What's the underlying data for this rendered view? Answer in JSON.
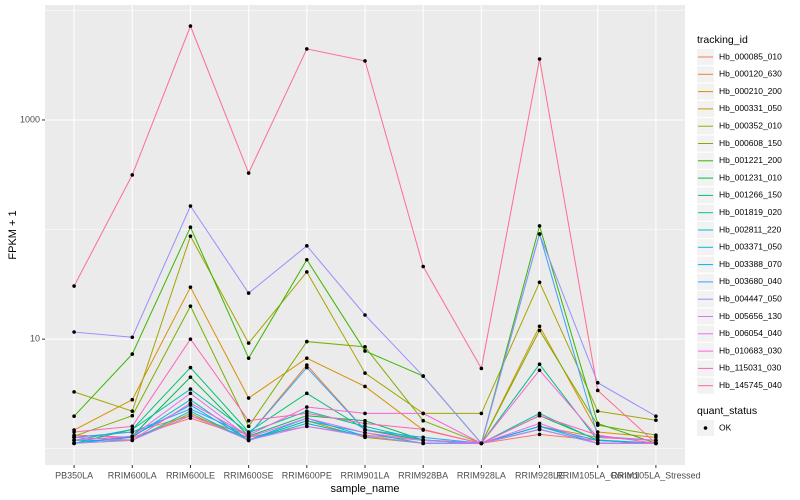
{
  "chart_data": {
    "type": "line",
    "x_label": "sample_name",
    "y_label": "FPKM + 1",
    "categories": [
      "PB350LA",
      "RRIM600LA",
      "RRIM600LE",
      "RRIM600SE",
      "RRIM600PE",
      "RRIM901LA",
      "RRIM928BA",
      "RRIM928LA",
      "RRIM928LE",
      "RRIM105LA_Control",
      "RRIM105LA_Stressed"
    ],
    "log_scale": true,
    "grid": true,
    "ylim": [
      0.71,
      11200
    ],
    "yticks": [
      10,
      1000
    ],
    "legend_position": "right",
    "legend_title": "tracking_id",
    "point_legend": {
      "title": "quant_status",
      "labels": [
        "OK"
      ],
      "color": "#000000"
    },
    "series": [
      {
        "name": "Hb_000085_010",
        "color": "#F8766D",
        "values": [
          1.33,
          1.27,
          1.9,
          1.27,
          1.6,
          1.33,
          1.19,
          1.12,
          1.35,
          1.19,
          1.12
        ]
      },
      {
        "name": "Hb_000120_630",
        "color": "#EA8331",
        "values": [
          1.27,
          1.42,
          2.0,
          1.33,
          5.8,
          1.48,
          1.19,
          1.12,
          1.6,
          1.27,
          1.19
        ]
      },
      {
        "name": "Hb_000210_200",
        "color": "#D89000",
        "values": [
          1.48,
          2.8,
          29.8,
          2.9,
          6.7,
          3.7,
          1.48,
          1.12,
          13.1,
          1.42,
          1.27
        ]
      },
      {
        "name": "Hb_000331_050",
        "color": "#C09B00",
        "values": [
          1.12,
          1.19,
          2.1,
          1.19,
          1.8,
          1.27,
          1.12,
          1.12,
          1.5,
          1.12,
          1.12
        ]
      },
      {
        "name": "Hb_000352_010",
        "color": "#A3A500",
        "values": [
          3.3,
          2.2,
          87,
          9.2,
          41,
          4.9,
          2.1,
          2.1,
          33,
          2.2,
          1.82
        ]
      },
      {
        "name": "Hb_000608_150",
        "color": "#7CAE00",
        "values": [
          1.3,
          2.0,
          20,
          1.6,
          9.5,
          8.5,
          1.8,
          1.12,
          12,
          1.64,
          1.33
        ]
      },
      {
        "name": "Hb_001221_200",
        "color": "#39B600",
        "values": [
          1.98,
          7.3,
          105,
          6.7,
          53,
          7.8,
          4.6,
          1.12,
          108,
          1.7,
          1.12
        ]
      },
      {
        "name": "Hb_001231_010",
        "color": "#00BB4E",
        "values": [
          1.12,
          1.3,
          4.5,
          1.3,
          2.0,
          1.8,
          1.2,
          1.12,
          2.0,
          1.2,
          1.12
        ]
      },
      {
        "name": "Hb_001266_150",
        "color": "#00BF7D",
        "values": [
          1.12,
          1.5,
          5.5,
          1.42,
          3.2,
          1.5,
          1.19,
          1.12,
          5.9,
          1.19,
          1.12
        ]
      },
      {
        "name": "Hb_001819_020",
        "color": "#00C1A3",
        "values": [
          1.19,
          1.5,
          3.5,
          1.4,
          2.2,
          1.6,
          1.2,
          1.12,
          2.1,
          1.19,
          1.12
        ]
      },
      {
        "name": "Hb_002811_220",
        "color": "#00BFC4",
        "values": [
          1.12,
          1.27,
          2.8,
          1.2,
          1.8,
          1.4,
          1.12,
          1.12,
          1.6,
          1.12,
          1.12
        ]
      },
      {
        "name": "Hb_003371_050",
        "color": "#00BAE0",
        "values": [
          1.19,
          1.2,
          2.2,
          1.19,
          1.7,
          1.3,
          1.12,
          1.12,
          1.5,
          1.12,
          1.12
        ]
      },
      {
        "name": "Hb_003388_070",
        "color": "#00B0F6",
        "values": [
          1.12,
          1.3,
          2.5,
          1.2,
          1.9,
          1.3,
          1.12,
          1.12,
          1.6,
          1.19,
          1.12
        ]
      },
      {
        "name": "Hb_003680_040",
        "color": "#35A2FF",
        "values": [
          1.27,
          1.42,
          2.3,
          1.33,
          5.5,
          1.48,
          1.27,
          1.12,
          91,
          1.3,
          1.19
        ]
      },
      {
        "name": "Hb_004447_050",
        "color": "#9590FF",
        "values": [
          11.6,
          10.4,
          164,
          26.3,
          71,
          16.6,
          4.6,
          1.12,
          91,
          4.0,
          1.98
        ]
      },
      {
        "name": "Hb_005656_130",
        "color": "#C77CFF",
        "values": [
          1.12,
          1.2,
          2.0,
          1.2,
          1.6,
          1.3,
          1.12,
          1.12,
          1.5,
          1.12,
          1.12
        ]
      },
      {
        "name": "Hb_006054_040",
        "color": "#E76BF3",
        "values": [
          1.2,
          1.3,
          3.2,
          1.27,
          1.9,
          1.4,
          1.19,
          1.12,
          1.7,
          1.12,
          1.12
        ]
      },
      {
        "name": "Hb_010683_030",
        "color": "#FA62DB",
        "values": [
          1.27,
          1.2,
          2.6,
          1.33,
          2.4,
          2.1,
          2.1,
          1.12,
          5.2,
          1.27,
          1.19
        ]
      },
      {
        "name": "Hb_115031_030",
        "color": "#FF62BC",
        "values": [
          1.42,
          1.6,
          10,
          1.8,
          2.1,
          1.7,
          1.5,
          1.12,
          2.0,
          1.33,
          1.12
        ]
      },
      {
        "name": "Hb_145745_040",
        "color": "#FF6C91",
        "values": [
          30.5,
          315,
          7200,
          328,
          4450,
          3460,
          46,
          5.4,
          3600,
          3.4,
          1.12
        ]
      }
    ]
  }
}
